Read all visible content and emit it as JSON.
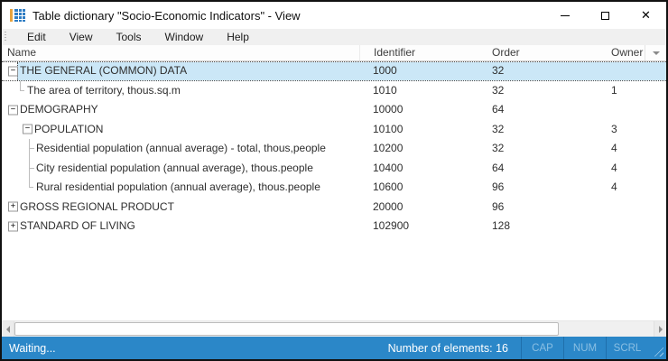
{
  "window": {
    "title": "Table dictionary \"Socio-Economic Indicators\" - View"
  },
  "icons": {
    "app_icon": "table-dictionary",
    "minimize": "horizontal-line",
    "maximize": "square-outline",
    "close": "✕",
    "expander_collapsed": "+",
    "expander_expanded": "−",
    "header_filter": "chevron-down",
    "scroll_left": "triangle-left",
    "scroll_right": "triangle-right"
  },
  "menu": {
    "items": [
      "Edit",
      "View",
      "Tools",
      "Window",
      "Help"
    ]
  },
  "grid": {
    "columns": {
      "name": "Name",
      "identifier": "Identifier",
      "order": "Order",
      "owner": "Owner"
    },
    "rows": [
      {
        "name": "THE GENERAL (COMMON) DATA",
        "identifier": "1000",
        "order": "32",
        "owner": "",
        "indent": 0,
        "expander": "minus",
        "tree": null,
        "selected": true
      },
      {
        "name": "The area of territory, thous.sq.m",
        "identifier": "1010",
        "order": "32",
        "owner": "1",
        "indent": 1,
        "expander": null,
        "tree": "elbow",
        "selected": false
      },
      {
        "name": "DEMOGRAPHY",
        "identifier": "10000",
        "order": "64",
        "owner": "",
        "indent": 0,
        "expander": "minus",
        "tree": null,
        "selected": false
      },
      {
        "name": "POPULATION",
        "identifier": "10100",
        "order": "32",
        "owner": "3",
        "indent": 1,
        "expander": "minus",
        "tree": null,
        "selected": false
      },
      {
        "name": "Residential population (annual average) - total, thous,people",
        "identifier": "10200",
        "order": "32",
        "owner": "4",
        "indent": 2,
        "expander": null,
        "tree": "tee",
        "selected": false
      },
      {
        "name": "City residential population (annual average), thous.people",
        "identifier": "10400",
        "order": "64",
        "owner": "4",
        "indent": 2,
        "expander": null,
        "tree": "tee",
        "selected": false
      },
      {
        "name": "Rural residential population (annual average), thous.people",
        "identifier": "10600",
        "order": "96",
        "owner": "4",
        "indent": 2,
        "expander": null,
        "tree": "elbow",
        "selected": false
      },
      {
        "name": "GROSS REGIONAL PRODUCT",
        "identifier": "20000",
        "order": "96",
        "owner": "",
        "indent": 0,
        "expander": "plus",
        "tree": null,
        "selected": false
      },
      {
        "name": "STANDARD OF LIVING",
        "identifier": "102900",
        "order": "128",
        "owner": "",
        "indent": 0,
        "expander": "plus",
        "tree": null,
        "selected": false
      }
    ]
  },
  "statusbar": {
    "status": "Waiting...",
    "elements_count": "Number of elements: 16",
    "indicators": [
      "CAP",
      "NUM",
      "SCRL"
    ]
  },
  "colors": {
    "statusbar_blue": "#2b87c8",
    "selection_blue": "#cbe7f7",
    "icon_blue": "#2e7cc3",
    "icon_orange": "#e8a33d"
  }
}
